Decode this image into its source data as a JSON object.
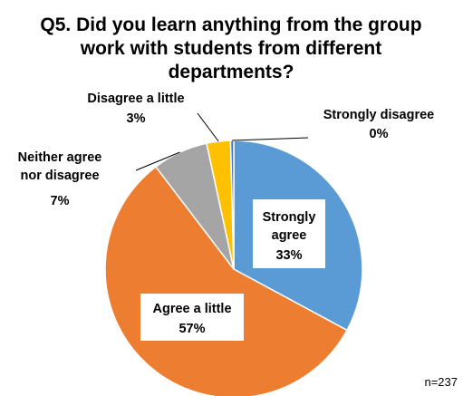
{
  "chart_data": {
    "type": "pie",
    "title_lines": [
      "Q5.  Did you learn anything from the group",
      "work with students from different",
      "departments?"
    ],
    "slices": [
      {
        "label_lines": [
          "Strongly",
          "agree"
        ],
        "value": 33,
        "value_label": "33%",
        "color": "#5b9bd5"
      },
      {
        "label_lines": [
          "Agree a little"
        ],
        "value": 57,
        "value_label": "57%",
        "color": "#ed7d31"
      },
      {
        "label_lines": [
          "Neither agree",
          "nor disagree"
        ],
        "value": 7,
        "value_label": "7%",
        "color": "#a5a5a5"
      },
      {
        "label_lines": [
          "Disagree a little"
        ],
        "value": 3,
        "value_label": "3%",
        "color": "#ffc000"
      },
      {
        "label_lines": [
          "Strongly disagree"
        ],
        "value": 0.4,
        "value_label": "0%",
        "color": "#4472c4"
      }
    ],
    "note": "n=237"
  }
}
